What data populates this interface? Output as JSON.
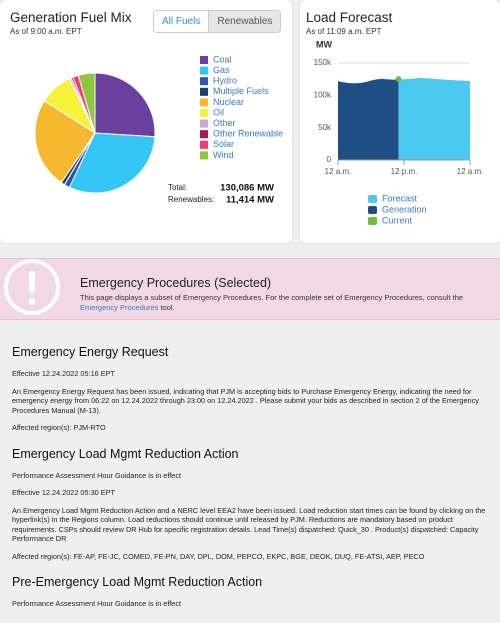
{
  "chart_data": [
    {
      "type": "pie",
      "title": "Generation Fuel Mix",
      "subtitle": "As of 9:00 a.m. EPT",
      "tabs": [
        "All Fuels",
        "Renewables"
      ],
      "categories": [
        "Coal",
        "Gas",
        "Hydro",
        "Multiple Fuels",
        "Nuclear",
        "Oil",
        "Other",
        "Other Renewable",
        "Solar",
        "Wind"
      ],
      "values": [
        26,
        31,
        1.5,
        1,
        24.5,
        9,
        0.5,
        0.5,
        1.5,
        4.5
      ],
      "colors": [
        "#6b3fa0",
        "#33c6f4",
        "#2a56b8",
        "#1b3f73",
        "#f5b82e",
        "#f6f23a",
        "#c8a8d4",
        "#a3195b",
        "#f03b6e",
        "#8dc63f"
      ],
      "totals": [
        {
          "label": "Total:",
          "value": "130,086 MW"
        },
        {
          "label": "Renewables:",
          "value": "11,414 MW"
        }
      ]
    },
    {
      "type": "area",
      "title": "Load Forecast",
      "subtitle": "As of 11:09 a.m. EPT",
      "y_label": "MW",
      "x": [
        0,
        1,
        2,
        3,
        4,
        5,
        6,
        7,
        8,
        9,
        10,
        11,
        12,
        13,
        14,
        15,
        16,
        17,
        18,
        19,
        20,
        21,
        22,
        23,
        24
      ],
      "xlim": [
        0,
        24
      ],
      "xticks": [
        {
          "value": 0,
          "label": "12 a.m."
        },
        {
          "value": 12,
          "label": "12 p.m."
        },
        {
          "value": 24,
          "label": "12 a.m."
        }
      ],
      "ylim": [
        0,
        150000
      ],
      "yticks": [
        {
          "value": 0,
          "label": "0"
        },
        {
          "value": 50000,
          "label": "50k"
        },
        {
          "value": 100000,
          "label": "100k"
        },
        {
          "value": 150000,
          "label": "150k"
        }
      ],
      "grid": true,
      "series": [
        {
          "name": "Forecast",
          "color": "#4cc9f0",
          "values": [
            121000,
            119000,
            118000,
            117000,
            117500,
            119000,
            122000,
            125000,
            126000,
            125000,
            124500,
            124000,
            125000,
            125500,
            126000,
            127000,
            126500,
            126000,
            125000,
            124500,
            124000,
            123500,
            123000,
            122500,
            122000
          ]
        },
        {
          "name": "Generation",
          "color": "#1f4e85",
          "values": [
            122000,
            120000,
            119000,
            118500,
            119000,
            120500,
            123000,
            124500,
            125000,
            124500,
            124000,
            125000,
            null,
            null,
            null,
            null,
            null,
            null,
            null,
            null,
            null,
            null,
            null,
            null,
            null
          ]
        },
        {
          "name": "Current",
          "color": "#6cbf3a",
          "values": [
            null,
            null,
            null,
            null,
            null,
            null,
            null,
            null,
            null,
            null,
            null,
            125000,
            null,
            null,
            null,
            null,
            null,
            null,
            null,
            null,
            null,
            null,
            null,
            null,
            null
          ]
        }
      ]
    }
  ],
  "banner": {
    "title": "Emergency Procedures (Selected)",
    "text": "This page displays a subset of Emergency Procedures. For the complete set of Emergency Procedures, consult the ",
    "link": "Emergency Procedures",
    "text_end": " tool."
  },
  "sections": [
    {
      "title": "Emergency Energy Request",
      "lines": [
        "Effective 12.24.2022 05:16 EPT",
        "An Emergency Energy Request has been issued, indicating that PJM is accepting bids to Purchase Emergency Energy, indicating the need for emergency energy from 06:22 on 12.24.2022 through 23:00 on 12.24.2022 . Please submit your bids as described in section 2 of the Emergency Procedures Manual (M-13).",
        "Affected region(s): PJM-RTO"
      ]
    },
    {
      "title": "Emergency Load Mgmt Reduction Action",
      "lines": [
        "Performance Assessment Hour Guidance is in effect",
        "Effective 12.24.2022 05:30 EPT",
        "An Emergency Load Mgmt Reduction Action and a NERC level EEA2 have been issued. Load reduction start times can be found by clicking on the hyperlink(s) in the Regions column. Load reductions should continue until released by PJM. Reductions are mandatory based on product requirements. CSPs should review DR Hub for specific registration details. Lead Time(s) dispatched: Quick_30 . Product(s) dispatched: Capacity Performance DR",
        "Affected region(s): FE-AP, FE-JC, COMED, FE-PN, DAY, DPL, DOM, PEPCO, EKPC, BGE, DEOK, DUQ, FE-ATSI, AEP, PECO"
      ]
    },
    {
      "title": "Pre-Emergency Load Mgmt Reduction Action",
      "lines": [
        "Performance Assessment Hour Guidance is in effect"
      ]
    }
  ]
}
